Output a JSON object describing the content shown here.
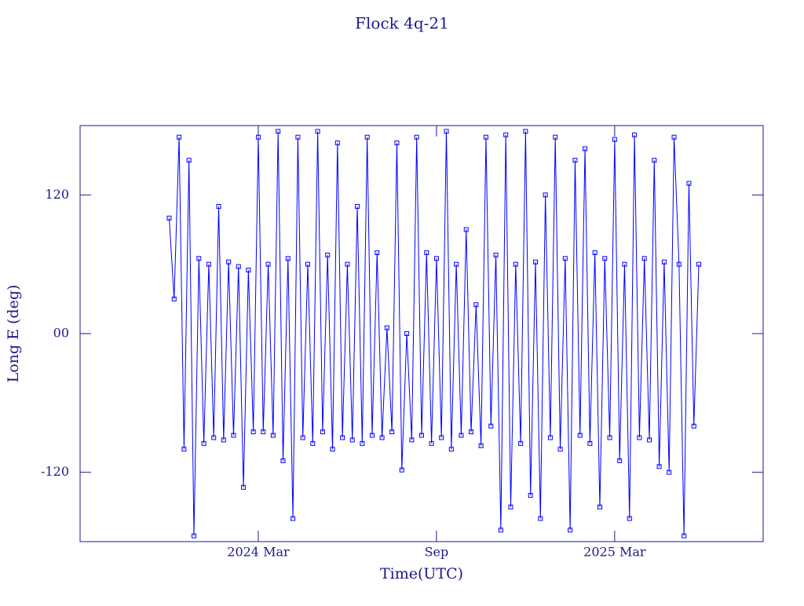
{
  "chart_data": {
    "type": "line",
    "title": "Flock 4q-21",
    "xlabel": "Time(UTC)",
    "ylabel": "Long E (deg)",
    "color": "#0000ff",
    "marker": "square",
    "x": [
      "2023-12",
      "2023-12",
      "2023-12",
      "2023-12",
      "2023-12",
      "2023-12",
      "2024-01",
      "2024-01",
      "2024-01",
      "2024-01",
      "2024-01",
      "2024-01",
      "2024-02",
      "2024-02",
      "2024-02",
      "2024-02",
      "2024-02",
      "2024-02",
      "2024-03",
      "2024-03",
      "2024-03",
      "2024-03",
      "2024-03",
      "2024-03",
      "2024-04",
      "2024-04",
      "2024-04",
      "2024-04",
      "2024-04",
      "2024-04",
      "2024-05",
      "2024-05",
      "2024-05",
      "2024-05",
      "2024-05",
      "2024-05",
      "2024-06",
      "2024-06",
      "2024-06",
      "2024-06",
      "2024-06",
      "2024-06",
      "2024-07",
      "2024-07",
      "2024-07",
      "2024-07",
      "2024-07",
      "2024-07",
      "2024-08",
      "2024-08",
      "2024-08",
      "2024-08",
      "2024-08",
      "2024-08",
      "2024-09",
      "2024-09",
      "2024-09",
      "2024-09",
      "2024-09",
      "2024-09",
      "2024-10",
      "2024-10",
      "2024-10",
      "2024-10",
      "2024-10",
      "2024-10",
      "2024-11",
      "2024-11",
      "2024-11",
      "2024-11",
      "2024-11",
      "2024-11",
      "2024-12",
      "2024-12",
      "2024-12",
      "2024-12",
      "2024-12",
      "2024-12",
      "2025-01",
      "2025-01",
      "2025-01",
      "2025-01",
      "2025-01",
      "2025-01",
      "2025-02",
      "2025-02",
      "2025-02",
      "2025-02",
      "2025-02",
      "2025-02",
      "2025-03",
      "2025-03",
      "2025-03",
      "2025-03",
      "2025-03",
      "2025-03",
      "2025-04",
      "2025-04",
      "2025-04",
      "2025-04",
      "2025-04",
      "2025-04",
      "2025-05",
      "2025-05",
      "2025-05",
      "2025-05",
      "2025-05",
      "2025-05"
    ],
    "values": [
      100,
      30,
      170,
      -100,
      150,
      -175,
      65,
      -95,
      60,
      -90,
      110,
      -92,
      62,
      -88,
      58,
      -133,
      55,
      -85,
      170,
      -85,
      60,
      -88,
      175,
      -110,
      65,
      -160,
      170,
      -90,
      60,
      -95,
      175,
      -85,
      68,
      -100,
      165,
      -90,
      60,
      -92,
      110,
      -95,
      170,
      -88,
      70,
      -90,
      5,
      -85,
      165,
      -118,
      0,
      -92,
      170,
      -88,
      70,
      -95,
      65,
      -90,
      175,
      -100,
      60,
      -88,
      90,
      -85,
      25,
      -97,
      170,
      -80,
      68,
      -170,
      172,
      -150,
      60,
      -95,
      175,
      -140,
      62,
      -160,
      120,
      -90,
      170,
      -100,
      65,
      -170,
      150,
      -88,
      160,
      -95,
      70,
      -150,
      65,
      -90,
      168,
      -110,
      60,
      -160,
      172,
      -90,
      65,
      -92,
      150,
      -115,
      62,
      -120,
      170,
      60,
      -175,
      130,
      -80,
      60
    ],
    "xlim": [
      "2023-09",
      "2025-08"
    ],
    "xticks": [
      {
        "value": "2024-03",
        "label": "2024 Mar"
      },
      {
        "value": "2024-09",
        "label": "Sep"
      },
      {
        "value": "2025-03",
        "label": "2025 Mar"
      }
    ],
    "ylim": [
      -180,
      180
    ],
    "yticks": [
      -120,
      {
        "value": 0,
        "label": "00"
      },
      120
    ]
  }
}
